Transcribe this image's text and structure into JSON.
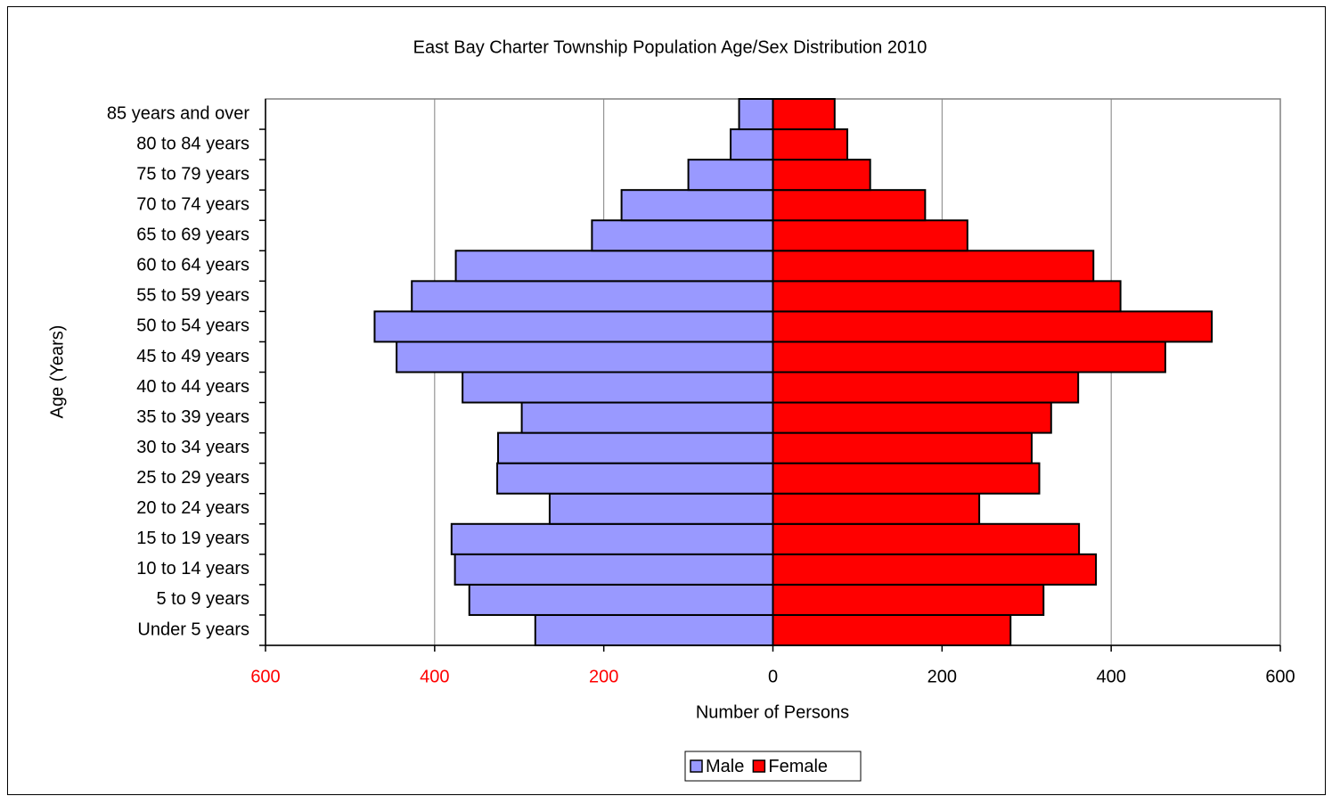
{
  "chart_data": {
    "type": "population_pyramid",
    "title": "East Bay Charter Township Population Age/Sex Distribution 2010",
    "ylabel": "Age (Years)",
    "xlabel": "Number of Persons",
    "categories": [
      "Under 5 years",
      "5 to 9 years",
      "10 to 14 years",
      "15 to 19 years",
      "20 to 24 years",
      "25 to 29 years",
      "30 to 34 years",
      "35 to 39 years",
      "40 to 44 years",
      "45 to 49 years",
      "50 to 54 years",
      "55 to 59 years",
      "60 to 64 years",
      "65 to 69 years",
      "70 to 74 years",
      "75 to 79 years",
      "80 to 84 years",
      "85 years and over"
    ],
    "series": [
      {
        "name": "Male",
        "color": "#9999ff",
        "values": [
          -281,
          -359,
          -376,
          -380,
          -264,
          -326,
          -325,
          -297,
          -367,
          -445,
          -471,
          -427,
          -375,
          -214,
          -179,
          -100,
          -50,
          -40
        ]
      },
      {
        "name": "Female",
        "color": "#ff0000",
        "values": [
          281,
          320,
          382,
          362,
          244,
          315,
          306,
          329,
          361,
          464,
          519,
          411,
          379,
          230,
          180,
          115,
          88,
          73
        ]
      }
    ],
    "xlim": [
      -600,
      600
    ],
    "xticks": [
      {
        "value": -600,
        "label": "600"
      },
      {
        "value": -400,
        "label": "400"
      },
      {
        "value": -200,
        "label": "200"
      },
      0,
      200,
      400,
      600
    ],
    "negative_tick_label_color": "#ff0000",
    "grid": true,
    "legend": "bottom"
  }
}
